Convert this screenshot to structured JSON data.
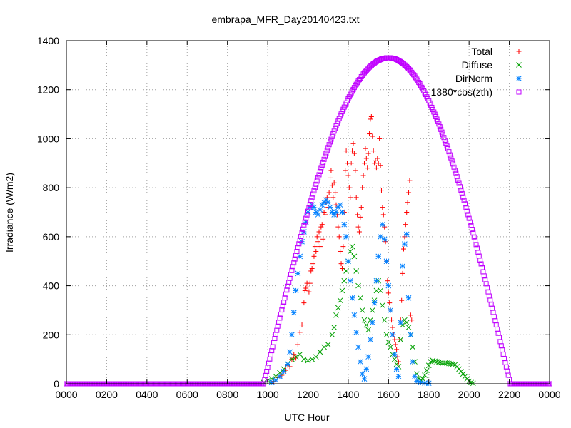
{
  "chart_data": {
    "type": "scatter",
    "title": "embrapa_MFR_Day20140423.txt",
    "xlabel": "UTC Hour",
    "ylabel": "Irradiance (W/m2)",
    "xlim": [
      0,
      24
    ],
    "ylim": [
      0,
      1400
    ],
    "x_ticks": [
      0,
      2,
      4,
      6,
      8,
      10,
      12,
      14,
      16,
      18,
      20,
      22,
      24
    ],
    "x_tick_labels": [
      "0000",
      "0200",
      "0400",
      "0600",
      "0800",
      "1000",
      "1200",
      "1400",
      "1600",
      "1800",
      "2000",
      "2200",
      "0000"
    ],
    "y_ticks": [
      0,
      200,
      400,
      600,
      800,
      1000,
      1200,
      1400
    ],
    "y_tick_labels": [
      "0",
      "200",
      "400",
      "600",
      "800",
      "1000",
      "1200",
      "1400"
    ],
    "grid": true,
    "legend_position": "top-right",
    "series": [
      {
        "name": "Total",
        "marker": "plus",
        "color": "#ff0000",
        "points": [
          [
            10.3,
            10
          ],
          [
            10.5,
            25
          ],
          [
            10.7,
            35
          ],
          [
            10.9,
            55
          ],
          [
            11.0,
            75
          ],
          [
            11.1,
            70
          ],
          [
            11.2,
            100
          ],
          [
            11.3,
            120
          ],
          [
            11.4,
            105
          ],
          [
            11.5,
            160
          ],
          [
            11.6,
            210
          ],
          [
            11.7,
            240
          ],
          [
            11.8,
            330
          ],
          [
            11.85,
            380
          ],
          [
            11.9,
            390
          ],
          [
            11.95,
            410
          ],
          [
            12.0,
            395
          ],
          [
            12.05,
            375
          ],
          [
            12.1,
            410
          ],
          [
            12.15,
            460
          ],
          [
            12.2,
            470
          ],
          [
            12.25,
            490
          ],
          [
            12.3,
            520
          ],
          [
            12.35,
            560
          ],
          [
            12.4,
            540
          ],
          [
            12.45,
            600
          ],
          [
            12.5,
            580
          ],
          [
            12.55,
            620
          ],
          [
            12.6,
            560
          ],
          [
            12.65,
            640
          ],
          [
            12.7,
            650
          ],
          [
            12.75,
            590
          ],
          [
            12.8,
            700
          ],
          [
            12.85,
            690
          ],
          [
            12.9,
            740
          ],
          [
            12.95,
            760
          ],
          [
            13.0,
            720
          ],
          [
            13.05,
            780
          ],
          [
            13.1,
            840
          ],
          [
            13.15,
            870
          ],
          [
            13.2,
            810
          ],
          [
            13.25,
            760
          ],
          [
            13.3,
            820
          ],
          [
            13.35,
            780
          ],
          [
            13.4,
            730
          ],
          [
            13.45,
            690
          ],
          [
            13.5,
            640
          ],
          [
            13.55,
            600
          ],
          [
            13.6,
            540
          ],
          [
            13.65,
            490
          ],
          [
            13.7,
            470
          ],
          [
            13.75,
            560
          ],
          [
            13.8,
            700
          ],
          [
            13.85,
            870
          ],
          [
            13.9,
            950
          ],
          [
            13.95,
            900
          ],
          [
            14.0,
            850
          ],
          [
            14.05,
            800
          ],
          [
            14.1,
            760
          ],
          [
            14.15,
            900
          ],
          [
            14.2,
            950
          ],
          [
            14.25,
            980
          ],
          [
            14.3,
            940
          ],
          [
            14.35,
            870
          ],
          [
            14.4,
            760
          ],
          [
            14.45,
            690
          ],
          [
            14.5,
            640
          ],
          [
            14.55,
            620
          ],
          [
            14.6,
            680
          ],
          [
            14.65,
            720
          ],
          [
            14.7,
            800
          ],
          [
            14.75,
            850
          ],
          [
            14.8,
            900
          ],
          [
            14.85,
            960
          ],
          [
            14.9,
            920
          ],
          [
            14.95,
            880
          ],
          [
            15.0,
            940
          ],
          [
            15.05,
            1020
          ],
          [
            15.1,
            1080
          ],
          [
            15.15,
            1090
          ],
          [
            15.2,
            1010
          ],
          [
            15.25,
            950
          ],
          [
            15.3,
            900
          ],
          [
            15.35,
            910
          ],
          [
            15.4,
            880
          ],
          [
            15.45,
            920
          ],
          [
            15.5,
            900
          ],
          [
            15.55,
            1000
          ],
          [
            15.6,
            890
          ],
          [
            15.65,
            790
          ],
          [
            15.7,
            720
          ],
          [
            15.75,
            690
          ],
          [
            15.8,
            640
          ],
          [
            15.85,
            580
          ],
          [
            15.9,
            500
          ],
          [
            15.95,
            420
          ],
          [
            16.0,
            370
          ],
          [
            16.05,
            330
          ],
          [
            16.1,
            300
          ],
          [
            16.15,
            260
          ],
          [
            16.2,
            230
          ],
          [
            16.25,
            200
          ],
          [
            16.3,
            180
          ],
          [
            16.35,
            160
          ],
          [
            16.4,
            140
          ],
          [
            16.45,
            110
          ],
          [
            16.5,
            90
          ],
          [
            16.55,
            180
          ],
          [
            16.6,
            260
          ],
          [
            16.65,
            340
          ],
          [
            16.7,
            450
          ],
          [
            16.75,
            550
          ],
          [
            16.8,
            600
          ],
          [
            16.85,
            650
          ],
          [
            16.9,
            700
          ],
          [
            16.95,
            740
          ],
          [
            17.0,
            780
          ],
          [
            17.05,
            830
          ],
          [
            17.1,
            280
          ],
          [
            17.15,
            260
          ]
        ]
      },
      {
        "name": "Diffuse",
        "marker": "cross",
        "color": "#00a000",
        "points": [
          [
            9.8,
            5
          ],
          [
            10.0,
            12
          ],
          [
            10.2,
            20
          ],
          [
            10.4,
            30
          ],
          [
            10.6,
            45
          ],
          [
            10.8,
            60
          ],
          [
            11.0,
            80
          ],
          [
            11.2,
            100
          ],
          [
            11.4,
            110
          ],
          [
            11.6,
            120
          ],
          [
            11.8,
            100
          ],
          [
            12.0,
            95
          ],
          [
            12.2,
            100
          ],
          [
            12.4,
            110
          ],
          [
            12.6,
            130
          ],
          [
            12.8,
            150
          ],
          [
            13.0,
            160
          ],
          [
            13.2,
            200
          ],
          [
            13.3,
            230
          ],
          [
            13.4,
            280
          ],
          [
            13.5,
            310
          ],
          [
            13.6,
            340
          ],
          [
            13.7,
            380
          ],
          [
            13.8,
            420
          ],
          [
            13.9,
            460
          ],
          [
            14.0,
            500
          ],
          [
            14.1,
            540
          ],
          [
            14.2,
            560
          ],
          [
            14.3,
            520
          ],
          [
            14.4,
            460
          ],
          [
            14.5,
            400
          ],
          [
            14.6,
            350
          ],
          [
            14.7,
            300
          ],
          [
            14.8,
            260
          ],
          [
            14.9,
            240
          ],
          [
            15.0,
            220
          ],
          [
            15.1,
            260
          ],
          [
            15.2,
            300
          ],
          [
            15.3,
            340
          ],
          [
            15.4,
            380
          ],
          [
            15.5,
            420
          ],
          [
            15.6,
            380
          ],
          [
            15.7,
            320
          ],
          [
            15.8,
            260
          ],
          [
            15.9,
            200
          ],
          [
            16.0,
            170
          ],
          [
            16.1,
            150
          ],
          [
            16.2,
            120
          ],
          [
            16.3,
            100
          ],
          [
            16.4,
            80
          ],
          [
            16.5,
            70
          ],
          [
            16.6,
            180
          ],
          [
            16.7,
            240
          ],
          [
            16.8,
            260
          ],
          [
            16.9,
            250
          ],
          [
            17.0,
            230
          ],
          [
            17.1,
            200
          ],
          [
            17.2,
            150
          ],
          [
            17.3,
            90
          ],
          [
            17.4,
            40
          ],
          [
            17.5,
            20
          ],
          [
            17.6,
            15
          ],
          [
            17.7,
            20
          ],
          [
            17.8,
            35
          ],
          [
            17.9,
            55
          ],
          [
            18.0,
            75
          ],
          [
            18.1,
            90
          ],
          [
            18.2,
            95
          ],
          [
            18.3,
            92
          ],
          [
            18.4,
            90
          ],
          [
            18.5,
            88
          ],
          [
            18.6,
            86
          ],
          [
            18.7,
            85
          ],
          [
            18.8,
            85
          ],
          [
            18.9,
            84
          ],
          [
            19.0,
            83
          ],
          [
            19.1,
            82
          ],
          [
            19.2,
            80
          ],
          [
            19.3,
            78
          ],
          [
            19.4,
            70
          ],
          [
            19.5,
            60
          ],
          [
            19.6,
            50
          ],
          [
            19.7,
            40
          ],
          [
            19.8,
            30
          ],
          [
            19.9,
            20
          ],
          [
            20.0,
            10
          ],
          [
            20.1,
            5
          ],
          [
            20.2,
            2
          ]
        ]
      },
      {
        "name": "DirNorm",
        "marker": "star",
        "color": "#0080ff",
        "points": [
          [
            10.2,
            5
          ],
          [
            10.4,
            15
          ],
          [
            10.6,
            30
          ],
          [
            10.8,
            50
          ],
          [
            11.0,
            80
          ],
          [
            11.1,
            130
          ],
          [
            11.2,
            200
          ],
          [
            11.3,
            290
          ],
          [
            11.4,
            380
          ],
          [
            11.5,
            450
          ],
          [
            11.6,
            520
          ],
          [
            11.7,
            580
          ],
          [
            11.8,
            620
          ],
          [
            11.9,
            660
          ],
          [
            12.0,
            700
          ],
          [
            12.1,
            720
          ],
          [
            12.2,
            730
          ],
          [
            12.3,
            720
          ],
          [
            12.4,
            700
          ],
          [
            12.5,
            690
          ],
          [
            12.6,
            710
          ],
          [
            12.7,
            730
          ],
          [
            12.8,
            740
          ],
          [
            12.9,
            750
          ],
          [
            13.0,
            740
          ],
          [
            13.1,
            720
          ],
          [
            13.2,
            700
          ],
          [
            13.3,
            690
          ],
          [
            13.4,
            700
          ],
          [
            13.5,
            720
          ],
          [
            13.6,
            730
          ],
          [
            13.7,
            700
          ],
          [
            13.8,
            650
          ],
          [
            13.9,
            600
          ],
          [
            14.0,
            500
          ],
          [
            14.1,
            420
          ],
          [
            14.2,
            350
          ],
          [
            14.3,
            280
          ],
          [
            14.4,
            210
          ],
          [
            14.5,
            150
          ],
          [
            14.6,
            90
          ],
          [
            14.7,
            40
          ],
          [
            14.8,
            20
          ],
          [
            14.9,
            60
          ],
          [
            15.0,
            110
          ],
          [
            15.1,
            180
          ],
          [
            15.2,
            250
          ],
          [
            15.3,
            330
          ],
          [
            15.4,
            420
          ],
          [
            15.5,
            520
          ],
          [
            15.6,
            600
          ],
          [
            15.7,
            650
          ],
          [
            15.8,
            590
          ],
          [
            15.9,
            500
          ],
          [
            16.0,
            400
          ],
          [
            16.1,
            300
          ],
          [
            16.2,
            200
          ],
          [
            16.3,
            120
          ],
          [
            16.4,
            60
          ],
          [
            16.5,
            30
          ],
          [
            16.6,
            250
          ],
          [
            16.7,
            480
          ],
          [
            16.8,
            570
          ],
          [
            16.9,
            610
          ],
          [
            17.0,
            350
          ],
          [
            17.1,
            200
          ],
          [
            17.2,
            90
          ],
          [
            17.3,
            30
          ],
          [
            17.4,
            10
          ],
          [
            17.6,
            5
          ],
          [
            17.8,
            3
          ],
          [
            18.0,
            2
          ]
        ]
      },
      {
        "name": "1380*cos(zth)",
        "marker": "square",
        "color": "#c000ff",
        "curve": {
          "sunrise": 9.8,
          "sunset": 22.05,
          "peak_x": 16.0,
          "peak_y": 1330,
          "sample_step": 0.05
        }
      }
    ]
  }
}
